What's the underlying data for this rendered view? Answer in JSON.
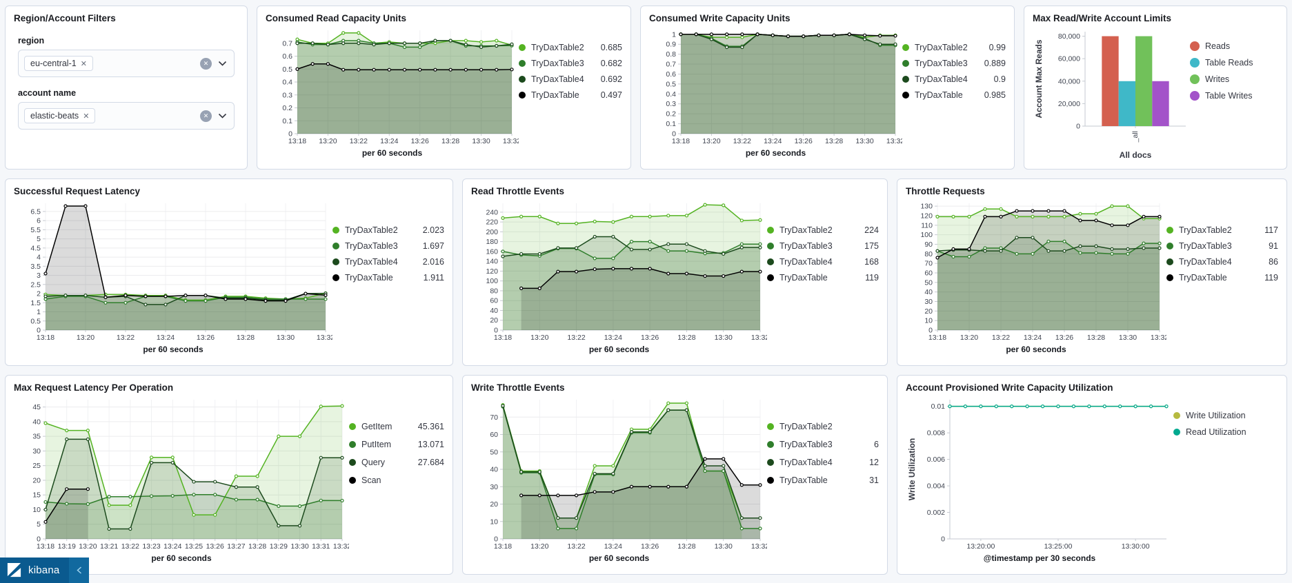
{
  "icons": {
    "close": "✕"
  },
  "footer": {
    "brand": "kibana",
    "logo_icon": "kibana-logo",
    "collapse_icon": "chevron-left"
  },
  "filters": {
    "title": "Region/Account Filters",
    "region": {
      "label": "region",
      "selected": "eu-central-1"
    },
    "account": {
      "label": "account name",
      "selected": "elastic-beats"
    }
  },
  "palette": {
    "green_bright": "#54B322",
    "green_mid": "#2F7E2B",
    "green_dark": "#1C4A1D",
    "black": "#000000"
  },
  "chart_data": [
    {
      "type": "line",
      "title": "Consumed Read Capacity Units",
      "xlabel": "per 60 seconds",
      "x_labels": [
        "13:18",
        "13:20",
        "13:22",
        "13:24",
        "13:26",
        "13:28",
        "13:30",
        "13:32"
      ],
      "x_label_idx": [
        0,
        2,
        4,
        6,
        8,
        10,
        12,
        14
      ],
      "yticks": [
        0,
        0.1,
        0.2,
        0.3,
        0.4,
        0.5,
        0.6,
        0.7
      ],
      "ymax": 0.8,
      "grid": true,
      "legend_position": "right",
      "series": [
        {
          "name": "TryDaxTable2",
          "color": "#54B322",
          "last": "0.685",
          "values": [
            0.73,
            0.7,
            0.7,
            0.78,
            0.78,
            0.7,
            0.71,
            0.7,
            0.7,
            0.7,
            0.72,
            0.72,
            0.71,
            0.72,
            0.685
          ]
        },
        {
          "name": "TryDaxTable3",
          "color": "#2F7E2B",
          "last": "0.682",
          "values": [
            0.71,
            0.69,
            0.69,
            0.72,
            0.72,
            0.7,
            0.7,
            0.67,
            0.67,
            0.72,
            0.72,
            0.68,
            0.68,
            0.68,
            0.682
          ]
        },
        {
          "name": "TryDaxTable4",
          "color": "#1C4A1D",
          "last": "0.692",
          "values": [
            0.7,
            0.7,
            0.69,
            0.7,
            0.7,
            0.69,
            0.7,
            0.7,
            0.7,
            0.72,
            0.72,
            0.69,
            0.67,
            0.68,
            0.692
          ]
        },
        {
          "name": "TryDaxTable",
          "color": "#000000",
          "last": "0.497",
          "values": [
            0.5,
            0.54,
            0.54,
            0.495,
            0.495,
            0.495,
            0.495,
            0.495,
            0.495,
            0.495,
            0.495,
            0.495,
            0.495,
            0.495,
            0.497
          ]
        }
      ]
    },
    {
      "type": "line",
      "title": "Consumed Write Capacity Units",
      "xlabel": "per 60 seconds",
      "x_labels": [
        "13:18",
        "13:20",
        "13:22",
        "13:24",
        "13:26",
        "13:28",
        "13:30",
        "13:32"
      ],
      "x_label_idx": [
        0,
        2,
        4,
        6,
        8,
        10,
        12,
        14
      ],
      "yticks": [
        0,
        0.1,
        0.2,
        0.3,
        0.4,
        0.5,
        0.6,
        0.7,
        0.8,
        0.9,
        1
      ],
      "ymax": 1.04,
      "grid": true,
      "legend_position": "right",
      "series": [
        {
          "name": "TryDaxTable2",
          "color": "#54B322",
          "last": "0.99",
          "values": [
            1,
            1,
            0.97,
            0.97,
            0.97,
            1,
            0.99,
            0.98,
            0.98,
            0.99,
            0.99,
            1,
            0.97,
            0.99,
            0.99
          ]
        },
        {
          "name": "TryDaxTable3",
          "color": "#2F7E2B",
          "last": "0.889",
          "values": [
            1,
            1,
            0.96,
            0.88,
            0.88,
            1,
            0.99,
            0.98,
            0.98,
            0.99,
            0.99,
            1,
            0.96,
            0.89,
            0.889
          ]
        },
        {
          "name": "TryDaxTable4",
          "color": "#1C4A1D",
          "last": "0.9",
          "values": [
            1,
            1,
            0.95,
            0.87,
            0.87,
            1,
            0.99,
            0.98,
            0.98,
            0.99,
            0.99,
            1,
            0.95,
            0.9,
            0.9
          ]
        },
        {
          "name": "TryDaxTable",
          "color": "#000000",
          "last": "0.985",
          "values": [
            1,
            1,
            1,
            1,
            1,
            1,
            0.99,
            0.98,
            0.98,
            0.99,
            0.99,
            1,
            0.99,
            0.985,
            0.985
          ]
        }
      ]
    },
    {
      "type": "line",
      "title": "Successful Request Latency",
      "xlabel": "per 60 seconds",
      "x_labels": [
        "13:18",
        "13:20",
        "13:22",
        "13:24",
        "13:26",
        "13:28",
        "13:30",
        "13:32"
      ],
      "x_label_idx": [
        0,
        2,
        4,
        6,
        8,
        10,
        12,
        14
      ],
      "yticks": [
        0,
        0.5,
        1,
        1.5,
        2,
        2.5,
        3,
        3.5,
        4,
        4.5,
        5,
        5.5,
        6,
        6.5
      ],
      "ymax": 6.95,
      "grid": true,
      "legend_position": "right",
      "series": [
        {
          "name": "TryDaxTable2",
          "color": "#54B322",
          "last": "2.023",
          "values": [
            1.95,
            1.9,
            1.9,
            1.95,
            1.95,
            1.9,
            1.9,
            1.65,
            1.65,
            1.85,
            1.85,
            1.75,
            1.7,
            1.75,
            2.023
          ]
        },
        {
          "name": "TryDaxTable3",
          "color": "#2F7E2B",
          "last": "1.697",
          "values": [
            1.7,
            1.85,
            1.85,
            1.5,
            1.5,
            1.85,
            1.85,
            1.6,
            1.6,
            1.8,
            1.8,
            1.7,
            1.7,
            1.7,
            1.697
          ]
        },
        {
          "name": "TryDaxTable4",
          "color": "#1C4A1D",
          "last": "2.016",
          "values": [
            1.85,
            1.9,
            1.9,
            1.8,
            1.85,
            1.4,
            1.4,
            1.9,
            1.9,
            1.75,
            1.75,
            1.65,
            1.65,
            2.0,
            2.016
          ]
        },
        {
          "name": "TryDaxTable",
          "color": "#000000",
          "last": "1.911",
          "values": [
            3.1,
            6.8,
            6.8,
            1.8,
            1.9,
            1.85,
            1.85,
            1.9,
            1.9,
            1.7,
            1.7,
            1.6,
            1.6,
            2.0,
            1.911
          ]
        }
      ]
    },
    {
      "type": "bar",
      "title": "Max Read/Write Account Limits",
      "categories": [
        "_all"
      ],
      "category_axis_title": "All docs",
      "xlabel": "All docs",
      "ylabel": "Account Max Reads",
      "yticks": [
        0,
        20000,
        40000,
        60000,
        80000
      ],
      "ymax": 84000,
      "legend_position": "right",
      "series": [
        {
          "name": "Reads",
          "color": "#D4604F",
          "value": 80000
        },
        {
          "name": "Table Reads",
          "color": "#3FB8C8",
          "value": 40000
        },
        {
          "name": "Writes",
          "color": "#71C15A",
          "value": 80000
        },
        {
          "name": "Table Writes",
          "color": "#A353C9",
          "value": 40000
        }
      ]
    },
    {
      "type": "line",
      "title": "Read Throttle Events",
      "xlabel": "per 60 seconds",
      "x_labels": [
        "13:18",
        "13:20",
        "13:22",
        "13:24",
        "13:26",
        "13:28",
        "13:30",
        "13:32"
      ],
      "x_label_idx": [
        0,
        2,
        4,
        6,
        8,
        10,
        12,
        14
      ],
      "yticks": [
        0,
        20,
        40,
        60,
        80,
        100,
        120,
        140,
        160,
        180,
        200,
        220,
        240
      ],
      "ymax": 258,
      "grid": true,
      "legend_position": "right",
      "series": [
        {
          "name": "TryDaxTable2",
          "color": "#54B322",
          "last": "224",
          "values": [
            228,
            231,
            231,
            217,
            217,
            221,
            220,
            231,
            231,
            233,
            233,
            255,
            254,
            223,
            224
          ]
        },
        {
          "name": "TryDaxTable3",
          "color": "#2F7E2B",
          "last": "175",
          "values": [
            160,
            153,
            151,
            166,
            166,
            146,
            146,
            180,
            180,
            161,
            161,
            156,
            157,
            175,
            175
          ]
        },
        {
          "name": "TryDaxTable4",
          "color": "#1C4A1D",
          "last": "168",
          "values": [
            150,
            155,
            155,
            167,
            167,
            190,
            190,
            164,
            164,
            175,
            175,
            161,
            155,
            168,
            168
          ]
        },
        {
          "name": "TryDaxTable",
          "color": "#000000",
          "last": "119",
          "values": [
            null,
            85,
            85,
            119,
            119,
            124,
            125,
            125,
            125,
            115,
            115,
            110,
            110,
            119,
            119
          ]
        }
      ]
    },
    {
      "type": "line",
      "title": "Throttle Requests",
      "xlabel": "per 60 seconds",
      "x_labels": [
        "13:18",
        "13:20",
        "13:22",
        "13:24",
        "13:26",
        "13:28",
        "13:30",
        "13:32"
      ],
      "x_label_idx": [
        0,
        2,
        4,
        6,
        8,
        10,
        12,
        14
      ],
      "yticks": [
        0,
        10,
        20,
        30,
        40,
        50,
        60,
        70,
        80,
        90,
        100,
        110,
        120,
        130
      ],
      "ymax": 133,
      "grid": true,
      "legend_position": "right",
      "series": [
        {
          "name": "TryDaxTable2",
          "color": "#54B322",
          "last": "117",
          "values": [
            119,
            119,
            119,
            127,
            127,
            119,
            119,
            119,
            119,
            122,
            122,
            130,
            130,
            117,
            117
          ]
        },
        {
          "name": "TryDaxTable3",
          "color": "#2F7E2B",
          "last": "91",
          "values": [
            83,
            77,
            77,
            86,
            86,
            80,
            80,
            93,
            93,
            81,
            81,
            80,
            80,
            91,
            91
          ]
        },
        {
          "name": "TryDaxTable4",
          "color": "#1C4A1D",
          "last": "86",
          "values": [
            83,
            84,
            84,
            83,
            83,
            97,
            97,
            83,
            83,
            88,
            88,
            85,
            85,
            86,
            86
          ]
        },
        {
          "name": "TryDaxTable",
          "color": "#000000",
          "last": "119",
          "values": [
            76,
            85,
            85,
            119,
            119,
            125,
            125,
            125,
            125,
            115,
            115,
            110,
            110,
            119,
            119
          ]
        }
      ]
    },
    {
      "type": "line",
      "title": "Max Request Latency Per Operation",
      "xlabel": "per 60 seconds",
      "x_labels": [
        "13:18",
        "13:19",
        "13:20",
        "13:21",
        "13:22",
        "13:23",
        "13:24",
        "13:25",
        "13:26",
        "13:27",
        "13:28",
        "13:29",
        "13:30",
        "13:31",
        "13:32"
      ],
      "x_label_idx": [
        0,
        1,
        2,
        3,
        4,
        5,
        6,
        7,
        8,
        9,
        10,
        11,
        12,
        13,
        14
      ],
      "yticks": [
        0,
        5,
        10,
        15,
        20,
        25,
        30,
        35,
        40,
        45
      ],
      "ymax": 47.5,
      "grid": true,
      "legend_position": "right",
      "series": [
        {
          "name": "GetItem",
          "color": "#54B322",
          "last": "45.361",
          "values": [
            39.5,
            37,
            37,
            11.5,
            11.5,
            27.8,
            27.8,
            8.2,
            8.2,
            21.4,
            21.4,
            35,
            35,
            45.2,
            45.361
          ]
        },
        {
          "name": "PutItem",
          "color": "#2F7E2B",
          "last": "13.071",
          "values": [
            12.6,
            12,
            11.9,
            14.4,
            14.4,
            14.6,
            14.7,
            15.1,
            15.1,
            13.4,
            13.4,
            11.2,
            11.2,
            13.1,
            13.071
          ]
        },
        {
          "name": "Query",
          "color": "#1C4A1D",
          "last": "27.684",
          "values": [
            10,
            34,
            34,
            3.4,
            3.4,
            26,
            26,
            19.5,
            19.5,
            17.7,
            17.7,
            4.5,
            4.5,
            27.7,
            27.684
          ]
        },
        {
          "name": "Scan",
          "color": "#000000",
          "last": "",
          "values": [
            5.8,
            17,
            17,
            null,
            null,
            null,
            null,
            null,
            null,
            null,
            null,
            null,
            null,
            null,
            null
          ]
        }
      ]
    },
    {
      "type": "line",
      "title": "Write Throttle Events",
      "xlabel": "per 60 seconds",
      "x_labels": [
        "13:18",
        "13:20",
        "13:22",
        "13:24",
        "13:26",
        "13:28",
        "13:30",
        "13:32"
      ],
      "x_label_idx": [
        0,
        2,
        4,
        6,
        8,
        10,
        12,
        14
      ],
      "yticks": [
        0,
        10,
        20,
        30,
        40,
        50,
        60,
        70
      ],
      "ymax": 80,
      "grid": true,
      "legend_position": "right",
      "series": [
        {
          "name": "TryDaxTable2",
          "color": "#54B322",
          "last": "",
          "values": [
            77,
            39,
            39,
            12,
            12,
            42,
            42,
            63,
            63,
            78,
            78,
            39,
            39,
            12,
            null
          ]
        },
        {
          "name": "TryDaxTable3",
          "color": "#2F7E2B",
          "last": "6",
          "values": [
            76,
            38,
            38,
            6,
            6,
            37,
            37,
            61,
            61,
            74,
            74,
            39,
            39,
            6,
            6
          ]
        },
        {
          "name": "TryDaxTable4",
          "color": "#1C4A1D",
          "last": "12",
          "values": [
            76.5,
            38.5,
            38.5,
            12,
            12,
            37.5,
            37.5,
            61.5,
            61.5,
            74,
            74,
            42,
            42,
            12,
            12
          ]
        },
        {
          "name": "TryDaxTable",
          "color": "#000000",
          "last": "31",
          "values": [
            null,
            25,
            25,
            25,
            25,
            27,
            27,
            30,
            30,
            30,
            30,
            46,
            46,
            31,
            31
          ]
        }
      ]
    },
    {
      "type": "line",
      "title": "Account Provisioned Write Capacity Utilization",
      "xlabel": "@timestamp per 30 seconds",
      "ylabel": "Write Utilization",
      "x_labels": [
        "13:20:00",
        "13:25:00",
        "13:30:00"
      ],
      "x_label_idx": [
        2,
        7,
        12
      ],
      "yticks": [
        0,
        0.002,
        0.004,
        0.006,
        0.008,
        0.01
      ],
      "ymax": 0.0105,
      "grid": false,
      "left_axis": true,
      "fill": 0,
      "legend_position": "right",
      "series": [
        {
          "name": "Write Utilization",
          "color": "#B6BA40",
          "last": "",
          "values": [
            0.01,
            0.01,
            0.01,
            0.01,
            0.01,
            0.01,
            0.01,
            0.01,
            0.01,
            0.01,
            0.01,
            0.01,
            0.01,
            0.01,
            0.01
          ]
        },
        {
          "name": "Read Utilization",
          "color": "#00A98F",
          "last": "",
          "values": [
            0.01,
            0.01,
            0.01,
            0.01,
            0.01,
            0.01,
            0.01,
            0.01,
            0.01,
            0.01,
            0.01,
            0.01,
            0.01,
            0.01,
            0.01
          ]
        }
      ]
    }
  ]
}
